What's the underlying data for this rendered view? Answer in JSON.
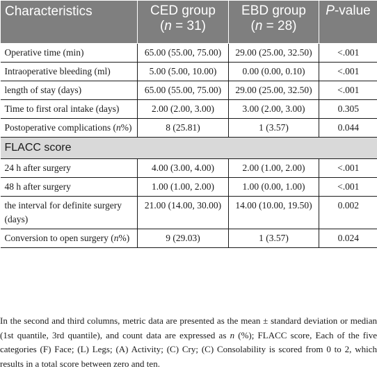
{
  "header": {
    "characteristics": "Characteristics",
    "ced": "CED group",
    "ced_n": "(n = 31)",
    "ebd": "EBD group",
    "ebd_n": "(n = 28)",
    "pvalue": "P-value"
  },
  "rows_a": [
    {
      "label": "Operative time (min)",
      "ced": "65.00 (55.00, 75.00)",
      "ebd": "29.00 (25.00, 32.50)",
      "p": "<.001"
    },
    {
      "label": "Intraoperative bleeding (ml)",
      "ced": "5.00 (5.00, 10.00)",
      "ebd": "0.00 (0.00, 0.10)",
      "p": "<.001"
    },
    {
      "label": "length of stay (days)",
      "ced": "65.00 (55.00, 75.00)",
      "ebd": "29.00 (25.00, 32.50)",
      "p": "<.001"
    },
    {
      "label": "Time to first oral intake (days)",
      "ced": "2.00 (2.00, 3.00)",
      "ebd": "3.00 (2.00, 3.00)",
      "p": "0.305"
    },
    {
      "label": "Postoperative complications (n%)",
      "ced": "8 (25.81)",
      "ebd": "1 (3.57)",
      "p": "0.044"
    }
  ],
  "section_label": "FLACC score",
  "rows_b": [
    {
      "label": "24 h after surgery",
      "ced": "4.00 (3.00, 4.00)",
      "ebd": "2.00 (1.00, 2.00)",
      "p": "<.001"
    },
    {
      "label": "48 h after surgery",
      "ced": "1.00 (1.00, 2.00)",
      "ebd": "1.00 (0.00, 1.00)",
      "p": "<.001"
    },
    {
      "label": "the interval for definite surgery (days)",
      "ced": "21.00 (14.00, 30.00)",
      "ebd": "14.00 (10.00, 19.50)",
      "p": "0.002"
    },
    {
      "label": "Conversion to open surgery (n%)",
      "ced": "9 (29.03)",
      "ebd": "1 (3.57)",
      "p": "0.024"
    }
  ],
  "footnote": "In the second and third columns, metric data are presented as the mean ± standard deviation or median (1st quantile, 3rd quantile), and count data are expressed as n (%); FLACC score, Each of the five categories (F) Face; (L) Legs; (A) Activity; (C) Cry; (C) Consolability is scored from 0 to 2, which results in a total score between zero and ten."
}
